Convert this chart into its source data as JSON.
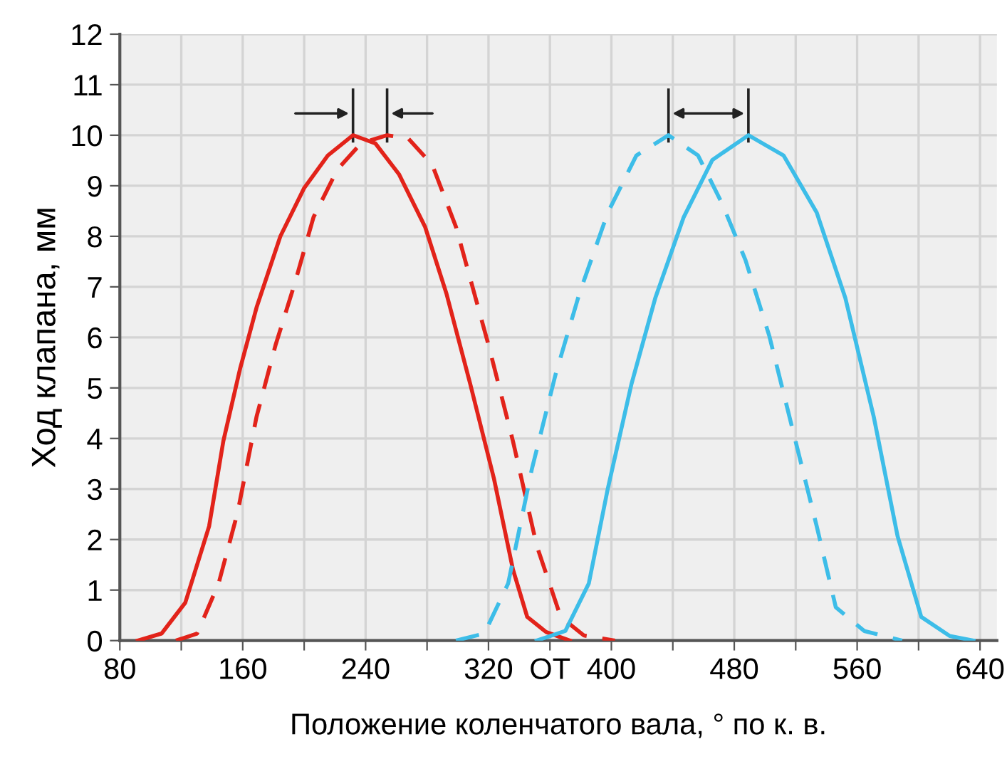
{
  "chart_data": {
    "type": "line",
    "xlabel": "Положение коленчатого вала, ° по к. в.",
    "ylabel": "Ход клапана, мм",
    "xlim": [
      80,
      651
    ],
    "ylim": [
      0,
      12
    ],
    "xticks": [
      80,
      {
        "value": 120,
        "label": null
      },
      160,
      {
        "value": 200,
        "label": null
      },
      240,
      {
        "value": 280,
        "label": null
      },
      320,
      {
        "value": 360,
        "label": "OT"
      },
      400,
      {
        "value": 440,
        "label": null
      },
      480,
      {
        "value": 520,
        "label": null
      },
      560,
      {
        "value": 600,
        "label": null
      },
      640
    ],
    "yticks": [
      0,
      1,
      2,
      3,
      4,
      5,
      6,
      7,
      8,
      9,
      10,
      11,
      12
    ],
    "grid": true,
    "marker": "none",
    "series": [
      {
        "color": "#e2231a",
        "line_style": "solid",
        "x": [
          91.7,
          107.2,
          122.6,
          138.1,
          147.4,
          158.2,
          169,
          184.5,
          199.9,
          215.4,
          231.8,
          246.3,
          261.7,
          278.7,
          292.6,
          308.1,
          323.6,
          335.9,
          345.2,
          357.5,
          373
        ],
        "values": [
          0,
          0.14,
          0.75,
          2.26,
          3.95,
          5.37,
          6.59,
          8.0,
          8.95,
          9.6,
          10.0,
          9.84,
          9.23,
          8.19,
          6.87,
          5.08,
          3.2,
          1.41,
          0.47,
          0.17,
          0
        ]
      },
      {
        "color": "#e2231a",
        "line_style": "dashed",
        "x": [
          116.5,
          130.3,
          144.3,
          156.7,
          169,
          181.3,
          193.8,
          206.1,
          221.6,
          237,
          254,
          267.9,
          283.3,
          298.8,
          320.1,
          335.9,
          351.4,
          367,
          382.2,
          402.4
        ],
        "values": [
          0,
          0.14,
          1.13,
          2.54,
          4.43,
          5.84,
          7.06,
          8.38,
          9.32,
          9.84,
          10.0,
          9.93,
          9.42,
          8.19,
          5.84,
          3.95,
          1.88,
          0.47,
          0.1,
          0
        ]
      },
      {
        "color": "#3dbde8",
        "line_style": "dashed",
        "x": [
          298.8,
          317.3,
          332.8,
          348.2,
          363.7,
          379.2,
          397.7,
          416.3,
          437.2,
          456.4,
          471.9,
          487.3,
          502.8,
          518.3,
          533.7,
          546.1,
          564.6,
          589.3
        ],
        "values": [
          0,
          0.14,
          1.13,
          3.39,
          5.27,
          6.87,
          8.47,
          9.6,
          10.0,
          9.6,
          8.66,
          7.53,
          6.03,
          4.14,
          2.26,
          0.66,
          0.19,
          0
        ]
      },
      {
        "color": "#3dbde8",
        "line_style": "solid",
        "x": [
          351.4,
          370,
          385.3,
          397.7,
          413.1,
          428.6,
          447.1,
          465.7,
          489.2,
          512.1,
          533.7,
          552.3,
          570.8,
          586.3,
          601.7,
          620.3,
          635.7
        ],
        "values": [
          0,
          0.19,
          1.13,
          3.01,
          5.08,
          6.78,
          8.38,
          9.51,
          10.0,
          9.6,
          8.47,
          6.78,
          4.43,
          2.07,
          0.47,
          0.09,
          0
        ]
      }
    ]
  }
}
